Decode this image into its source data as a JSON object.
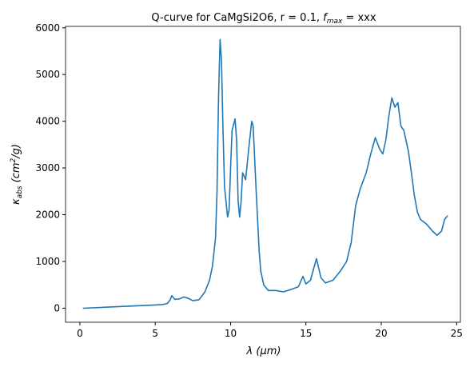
{
  "chart_data": {
    "type": "line",
    "title": {
      "prefix": "Q-curve for CaMgSi2O6, r = 0.1, ",
      "symbol": "f",
      "subscript": "max",
      "suffix": " = xxx"
    },
    "xlabel": "λ (μm)",
    "ylabel": {
      "symbol": "κ",
      "subscript": "abs",
      "unit": "(cm",
      "power": "2",
      "rest": "/g)"
    },
    "xlim": [
      -0.95,
      25.25
    ],
    "ylim": [
      -300,
      6030
    ],
    "xticks": [
      0,
      5,
      10,
      15,
      20,
      25
    ],
    "yticks": [
      0,
      1000,
      2000,
      3000,
      4000,
      5000,
      6000
    ],
    "series": [
      {
        "color": "#1f77b4",
        "x": [
          0.2,
          5,
          5.5,
          5.8,
          6.0,
          6.1,
          6.3,
          6.6,
          6.9,
          7.2,
          7.5,
          7.9,
          8.0,
          8.3,
          8.6,
          8.8,
          9.0,
          9.1,
          9.2,
          9.3,
          9.4,
          9.5,
          9.6,
          9.8,
          9.9,
          10.0,
          10.1,
          10.3,
          10.4,
          10.5,
          10.6,
          10.7,
          10.8,
          11.0,
          11.2,
          11.4,
          11.5,
          11.7,
          11.9,
          12.0,
          12.2,
          12.5,
          13,
          13.5,
          14,
          14.5,
          14.8,
          15.0,
          15.3,
          15.7,
          16.0,
          16.3,
          16.8,
          17.3,
          17.7,
          18.0,
          18.3,
          18.6,
          19.0,
          19.3,
          19.6,
          19.9,
          20.1,
          20.3,
          20.5,
          20.7,
          20.9,
          21.1,
          21.3,
          21.5,
          21.8,
          22.0,
          22.2,
          22.4,
          22.6,
          23.0,
          23.4,
          23.7,
          24.0,
          24.2,
          24.4
        ],
        "values": [
          0,
          70,
          80,
          100,
          180,
          270,
          190,
          200,
          240,
          210,
          160,
          180,
          220,
          350,
          600,
          900,
          1500,
          2500,
          4500,
          5750,
          5300,
          3800,
          2600,
          1950,
          2100,
          3000,
          3800,
          4050,
          3600,
          2300,
          1950,
          2300,
          2900,
          2750,
          3400,
          4000,
          3900,
          2500,
          1200,
          800,
          500,
          380,
          380,
          350,
          400,
          460,
          680,
          520,
          600,
          1060,
          650,
          540,
          600,
          800,
          1000,
          1400,
          2200,
          2550,
          2900,
          3300,
          3650,
          3400,
          3300,
          3600,
          4100,
          4500,
          4300,
          4400,
          3900,
          3800,
          3350,
          2900,
          2400,
          2050,
          1900,
          1800,
          1650,
          1560,
          1650,
          1900,
          1980
        ]
      }
    ]
  }
}
